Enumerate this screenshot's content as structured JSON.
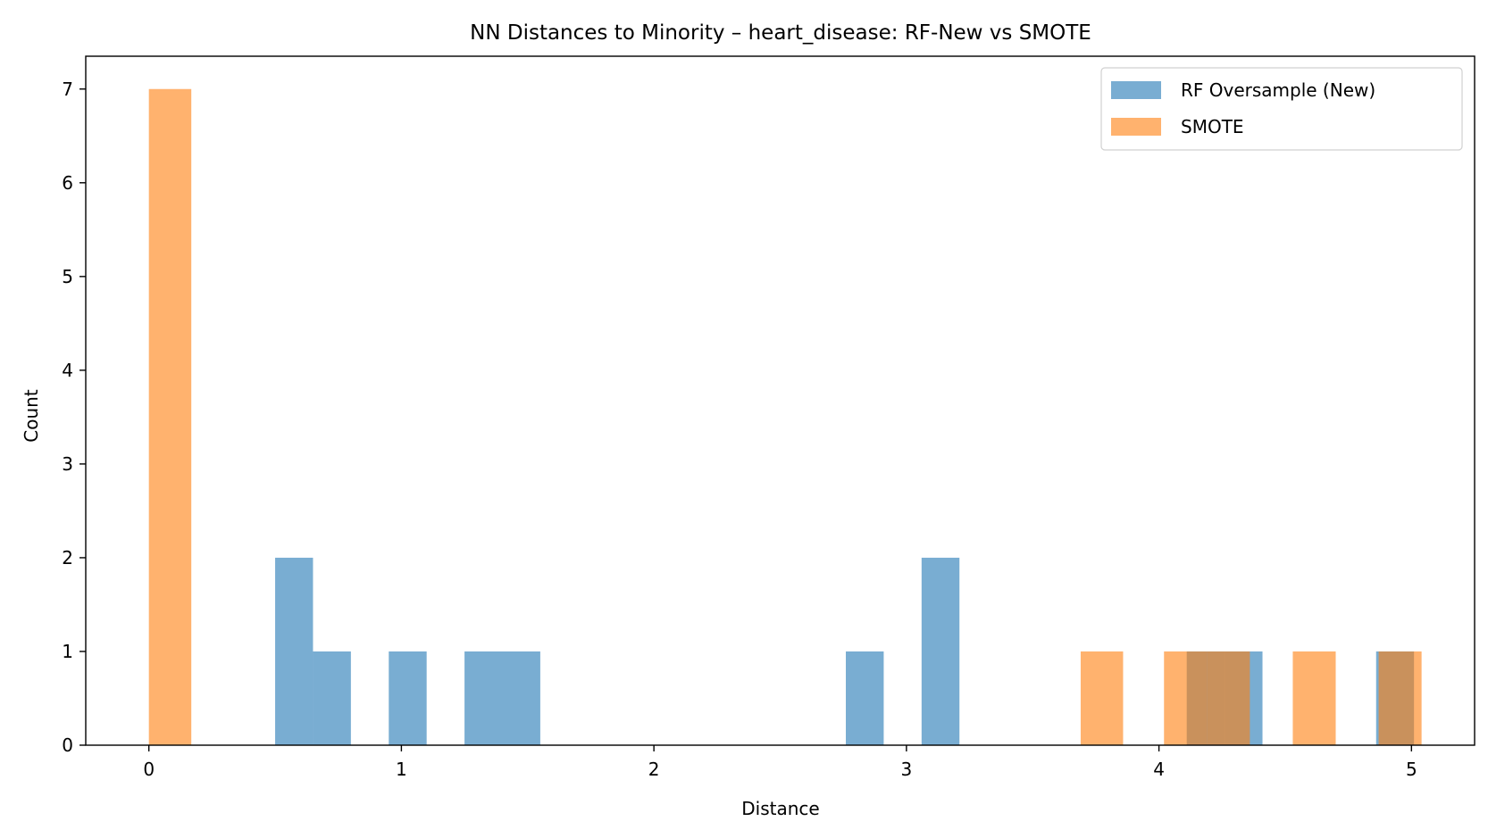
{
  "chart_data": {
    "type": "bar",
    "title": "NN Distances to Minority – heart_disease: RF-New vs SMOTE",
    "xlabel": "Distance",
    "ylabel": "Count",
    "xlim": [
      -0.25,
      5.25
    ],
    "ylim": [
      0,
      7.35
    ],
    "xticks": [
      0,
      1,
      2,
      3,
      4,
      5
    ],
    "yticks": [
      0,
      1,
      2,
      3,
      4,
      5,
      6,
      7
    ],
    "grid": false,
    "legend_position": "top-right",
    "series": [
      {
        "name": "RF Oversample (New)",
        "color": "#1f77b4",
        "opacity": 0.6,
        "bars": [
          {
            "x0": 0.5,
            "x1": 0.65,
            "count": 2
          },
          {
            "x0": 0.65,
            "x1": 0.8,
            "count": 1
          },
          {
            "x0": 0.95,
            "x1": 1.1,
            "count": 1
          },
          {
            "x0": 1.25,
            "x1": 1.4,
            "count": 1
          },
          {
            "x0": 1.4,
            "x1": 1.55,
            "count": 1
          },
          {
            "x0": 2.76,
            "x1": 2.91,
            "count": 1
          },
          {
            "x0": 3.06,
            "x1": 3.21,
            "count": 2
          },
          {
            "x0": 4.11,
            "x1": 4.26,
            "count": 1
          },
          {
            "x0": 4.26,
            "x1": 4.41,
            "count": 1
          },
          {
            "x0": 4.86,
            "x1": 5.01,
            "count": 1
          }
        ]
      },
      {
        "name": "SMOTE",
        "color": "#ff7f0e",
        "opacity": 0.6,
        "bars": [
          {
            "x0": 0.0,
            "x1": 0.168,
            "count": 7
          },
          {
            "x0": 3.69,
            "x1": 3.858,
            "count": 1
          },
          {
            "x0": 4.02,
            "x1": 4.19,
            "count": 1
          },
          {
            "x0": 4.19,
            "x1": 4.36,
            "count": 1
          },
          {
            "x0": 4.53,
            "x1": 4.7,
            "count": 1
          },
          {
            "x0": 4.87,
            "x1": 5.04,
            "count": 1
          }
        ]
      }
    ]
  }
}
